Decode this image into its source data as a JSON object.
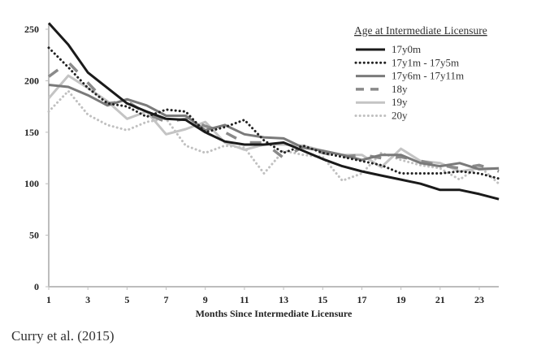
{
  "caption": "Curry et al. (2015)",
  "chart_data": {
    "type": "line",
    "title": "",
    "xlabel": "Months Since Intermediate Licensure",
    "ylabel": "",
    "x": [
      1,
      2,
      3,
      4,
      5,
      6,
      7,
      8,
      9,
      10,
      11,
      12,
      13,
      14,
      15,
      16,
      17,
      18,
      19,
      20,
      21,
      22,
      23,
      24
    ],
    "xticks": [
      1,
      3,
      5,
      7,
      9,
      11,
      13,
      15,
      17,
      19,
      21,
      23
    ],
    "xlim": [
      1,
      24
    ],
    "yticks": [
      0,
      50,
      100,
      150,
      200,
      250
    ],
    "ylim": [
      0,
      260
    ],
    "grid": false,
    "legend": {
      "title": "Age at Intermediate Licensure",
      "position": "top-right"
    },
    "series": [
      {
        "name": "17y0m",
        "style": "solid",
        "color": "#1a1a1a",
        "values": [
          256,
          235,
          208,
          193,
          178,
          170,
          163,
          162,
          150,
          141,
          138,
          138,
          140,
          132,
          124,
          117,
          112,
          108,
          104,
          100,
          94,
          94,
          90,
          85
        ]
      },
      {
        "name": "17y1m - 17y5m",
        "style": "dotted",
        "color": "#222222",
        "values": [
          232,
          213,
          193,
          178,
          175,
          165,
          172,
          170,
          150,
          155,
          162,
          142,
          130,
          137,
          130,
          126,
          122,
          118,
          110,
          110,
          110,
          112,
          110,
          105
        ]
      },
      {
        "name": "17y6m - 17y11m",
        "style": "solid",
        "color": "#7a7a7a",
        "values": [
          196,
          194,
          186,
          176,
          182,
          176,
          166,
          166,
          152,
          157,
          148,
          145,
          144,
          135,
          132,
          128,
          123,
          128,
          128,
          120,
          117,
          120,
          114,
          115
        ]
      },
      {
        "name": "18y",
        "style": "dashed",
        "color": "#8a8a8a",
        "values": [
          204,
          218,
          198,
          178,
          180,
          168,
          160,
          163,
          156,
          150,
          140,
          140,
          125,
          136,
          130,
          126,
          128,
          125,
          126,
          122,
          118,
          115,
          118,
          112
        ]
      },
      {
        "name": "19y",
        "style": "solid",
        "color": "#c4c4c4",
        "values": [
          183,
          205,
          193,
          180,
          163,
          170,
          148,
          153,
          160,
          140,
          133,
          138,
          138,
          137,
          132,
          128,
          128,
          116,
          134,
          122,
          120,
          112,
          115,
          115
        ]
      },
      {
        "name": "20y",
        "style": "dotted",
        "color": "#c0c0c0",
        "values": [
          170,
          190,
          167,
          157,
          152,
          160,
          163,
          137,
          130,
          137,
          135,
          110,
          132,
          128,
          126,
          103,
          110,
          130,
          123,
          118,
          115,
          104,
          117,
          100
        ]
      }
    ]
  }
}
